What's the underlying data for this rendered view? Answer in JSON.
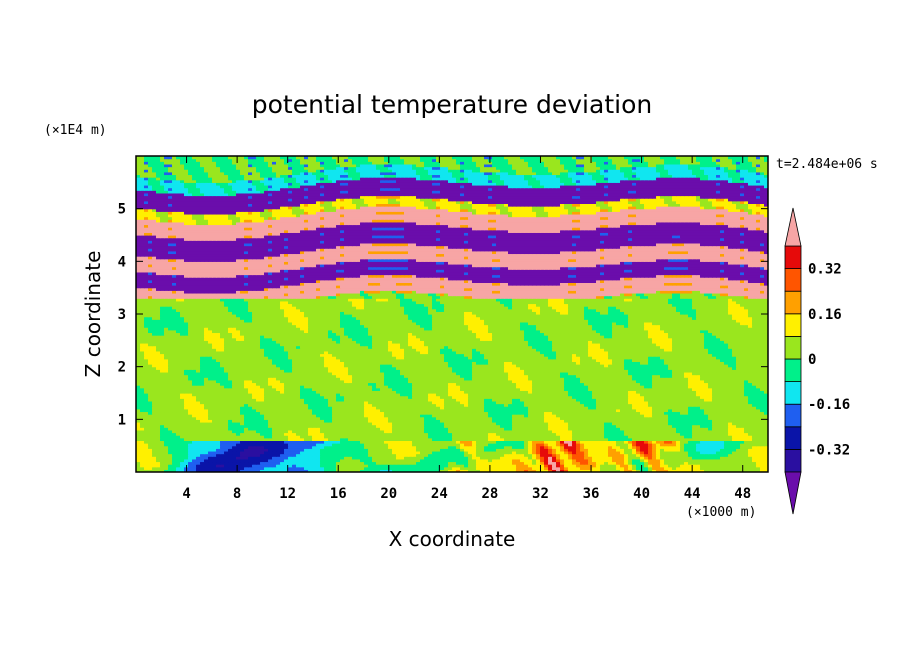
{
  "chart_data": {
    "type": "heatmap",
    "title": "potential temperature deviation",
    "xlabel": "X coordinate",
    "ylabel": "Z coordinate",
    "x_unit": "(×1000 m)",
    "y_unit": "(×1E4 m)",
    "time_label": "t=2.484e+06 s",
    "xlim": [
      0,
      50
    ],
    "ylim": [
      0,
      6
    ],
    "x_ticks": [
      "4",
      "8",
      "12",
      "16",
      "20",
      "24",
      "28",
      "32",
      "36",
      "40",
      "44",
      "48"
    ],
    "x_tick_values": [
      4,
      8,
      12,
      16,
      20,
      24,
      28,
      32,
      36,
      40,
      44,
      48
    ],
    "y_ticks": [
      "1",
      "2",
      "3",
      "4",
      "5"
    ],
    "y_tick_values": [
      1,
      2,
      3,
      4,
      5
    ],
    "colorbar": {
      "labels": [
        "0.32",
        "0.16",
        "0",
        "-0.16",
        "-0.32"
      ],
      "label_values": [
        0.32,
        0.16,
        0,
        -0.16,
        -0.32
      ],
      "levels": [
        -0.4,
        -0.32,
        -0.24,
        -0.16,
        -0.08,
        0,
        0.08,
        0.16,
        0.24,
        0.32,
        0.4
      ],
      "colors": [
        "#6a0dab",
        "#2a0fa0",
        "#0a14a8",
        "#1f5ff0",
        "#10e6f0",
        "#00f08a",
        "#9ae61e",
        "#fff000",
        "#ffa000",
        "#ff5500",
        "#e60a0a",
        "#f7a5a5"
      ],
      "extend": "both"
    },
    "bands": [
      {
        "z": [
          5.7,
          6.0
        ],
        "value": 0.0,
        "note": "top green"
      },
      {
        "z": [
          5.45,
          5.7
        ],
        "value": -0.1,
        "note": "cyan/blue streaks"
      },
      {
        "z": [
          5.1,
          5.45
        ],
        "value": -0.45,
        "note": "purple"
      },
      {
        "z": [
          4.9,
          5.1
        ],
        "value": 0.1,
        "note": "mixed"
      },
      {
        "z": [
          4.6,
          4.9
        ],
        "value": 0.45,
        "note": "pink"
      },
      {
        "z": [
          4.2,
          4.6
        ],
        "value": -0.45,
        "note": "purple"
      },
      {
        "z": [
          3.9,
          4.2
        ],
        "value": 0.45,
        "note": "pink"
      },
      {
        "z": [
          3.6,
          3.9
        ],
        "value": -0.45,
        "note": "purple"
      },
      {
        "z": [
          3.3,
          3.6
        ],
        "value": 0.45,
        "note": "pink"
      },
      {
        "z": [
          0.6,
          3.3
        ],
        "value": 0.03,
        "note": "green field"
      },
      {
        "z": [
          0.0,
          0.6
        ],
        "value": -0.2,
        "note": "boundary layer"
      }
    ]
  }
}
